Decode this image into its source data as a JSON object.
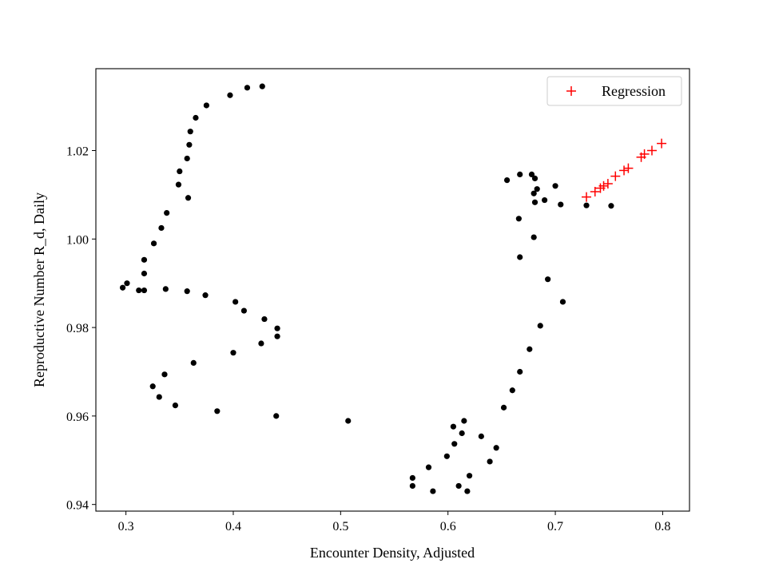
{
  "chart_data": {
    "type": "scatter",
    "xlabel": "Encounter Density, Adjusted",
    "ylabel": "Reproductive Number R_d, Daily",
    "xlim": [
      0.272,
      0.825
    ],
    "ylim": [
      0.9385,
      1.0385
    ],
    "x_ticks": [
      0.3,
      0.4,
      0.5,
      0.6,
      0.7,
      0.8
    ],
    "x_tick_labels": [
      "0.3",
      "0.4",
      "0.5",
      "0.6",
      "0.7",
      "0.8"
    ],
    "y_ticks": [
      0.94,
      0.96,
      0.98,
      1.0,
      1.02
    ],
    "y_tick_labels": [
      "0.94",
      "0.96",
      "0.98",
      "1.00",
      "1.02"
    ],
    "grid": false,
    "legend_placement": "top-right",
    "series": [
      {
        "marker": "dot",
        "color": "#000000",
        "points": [
          [
            0.427,
            1.0345
          ],
          [
            0.413,
            1.0342
          ],
          [
            0.397,
            1.0325
          ],
          [
            0.375,
            1.0302
          ],
          [
            0.365,
            1.0274
          ],
          [
            0.36,
            1.0243
          ],
          [
            0.359,
            1.0213
          ],
          [
            0.357,
            1.0182
          ],
          [
            0.35,
            1.0153
          ],
          [
            0.349,
            1.0123
          ],
          [
            0.358,
            1.0093
          ],
          [
            0.338,
            1.0059
          ],
          [
            0.333,
            1.0025
          ],
          [
            0.326,
            0.999
          ],
          [
            0.317,
            0.9953
          ],
          [
            0.317,
            0.9922
          ],
          [
            0.301,
            0.99
          ],
          [
            0.297,
            0.989
          ],
          [
            0.312,
            0.9884
          ],
          [
            0.317,
            0.9884
          ],
          [
            0.337,
            0.9887
          ],
          [
            0.357,
            0.9882
          ],
          [
            0.374,
            0.9873
          ],
          [
            0.402,
            0.9858
          ],
          [
            0.41,
            0.9838
          ],
          [
            0.429,
            0.9819
          ],
          [
            0.441,
            0.9798
          ],
          [
            0.441,
            0.978
          ],
          [
            0.426,
            0.9764
          ],
          [
            0.4,
            0.9743
          ],
          [
            0.363,
            0.972
          ],
          [
            0.336,
            0.9694
          ],
          [
            0.325,
            0.9667
          ],
          [
            0.331,
            0.9643
          ],
          [
            0.346,
            0.9624
          ],
          [
            0.385,
            0.9611
          ],
          [
            0.44,
            0.96
          ],
          [
            0.507,
            0.9589
          ],
          [
            0.567,
            0.946
          ],
          [
            0.567,
            0.9442
          ],
          [
            0.586,
            0.943
          ],
          [
            0.582,
            0.9484
          ],
          [
            0.599,
            0.9509
          ],
          [
            0.606,
            0.9537
          ],
          [
            0.605,
            0.9576
          ],
          [
            0.613,
            0.9561
          ],
          [
            0.615,
            0.9589
          ],
          [
            0.61,
            0.9442
          ],
          [
            0.618,
            0.943
          ],
          [
            0.62,
            0.9465
          ],
          [
            0.631,
            0.9554
          ],
          [
            0.639,
            0.9497
          ],
          [
            0.645,
            0.9528
          ],
          [
            0.652,
            0.9619
          ],
          [
            0.66,
            0.9658
          ],
          [
            0.667,
            0.97
          ],
          [
            0.676,
            0.9751
          ],
          [
            0.686,
            0.9804
          ],
          [
            0.707,
            0.9858
          ],
          [
            0.693,
            0.9909
          ],
          [
            0.667,
            0.9959
          ],
          [
            0.68,
            1.0004
          ],
          [
            0.666,
            1.0046
          ],
          [
            0.681,
            1.0083
          ],
          [
            0.69,
            1.0088
          ],
          [
            0.705,
            1.0078
          ],
          [
            0.68,
            1.0103
          ],
          [
            0.683,
            1.0113
          ],
          [
            0.7,
            1.012
          ],
          [
            0.655,
            1.0133
          ],
          [
            0.667,
            1.0146
          ],
          [
            0.678,
            1.0146
          ],
          [
            0.681,
            1.0137
          ],
          [
            0.729,
            1.0076
          ],
          [
            0.752,
            1.0075
          ]
        ]
      },
      {
        "name": "Regression",
        "marker": "plus",
        "color": "#ff0000",
        "points": [
          [
            0.729,
            1.0095
          ],
          [
            0.737,
            1.0107
          ],
          [
            0.742,
            1.0115
          ],
          [
            0.745,
            1.012
          ],
          [
            0.749,
            1.0125
          ],
          [
            0.756,
            1.0142
          ],
          [
            0.764,
            1.0155
          ],
          [
            0.768,
            1.016
          ],
          [
            0.78,
            1.0185
          ],
          [
            0.783,
            1.0192
          ],
          [
            0.79,
            1.02
          ],
          [
            0.799,
            1.0216
          ]
        ]
      }
    ]
  }
}
